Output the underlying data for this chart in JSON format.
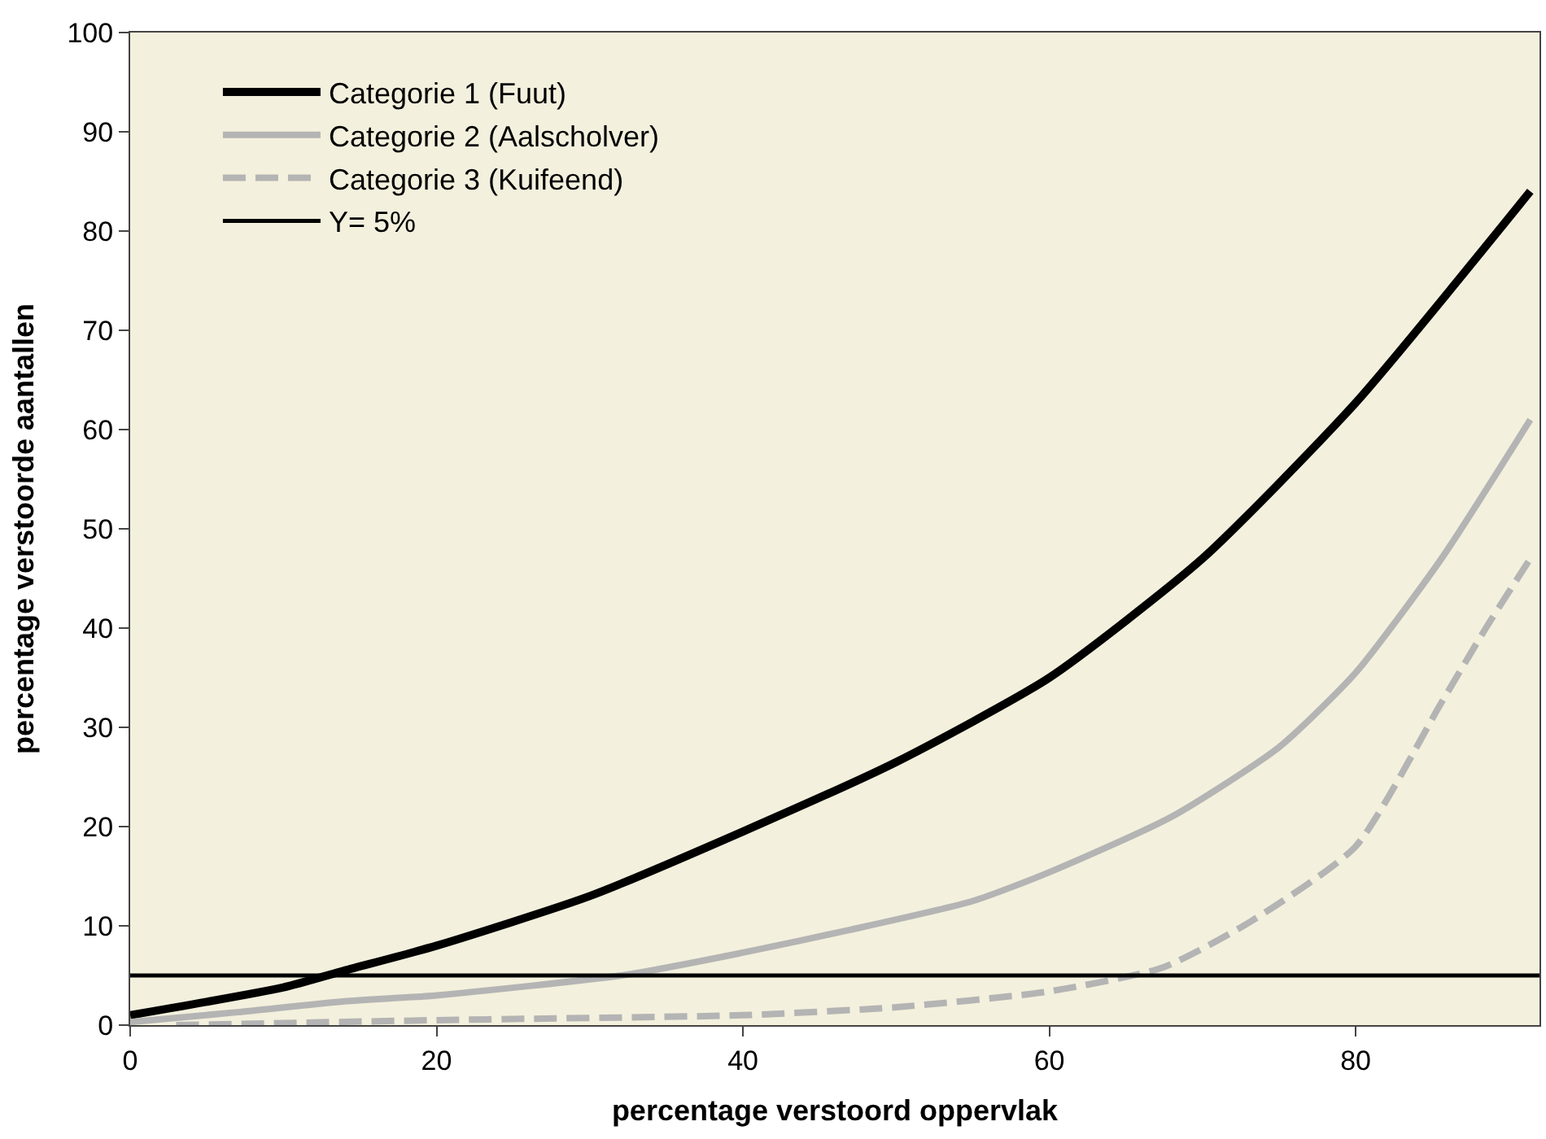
{
  "chart_data": {
    "type": "line",
    "xlabel": "percentage verstoord oppervlak",
    "ylabel": "percentage verstoorde aantallen",
    "xlim": [
      0,
      92
    ],
    "xticks": [
      0,
      20,
      40,
      60,
      80
    ],
    "ylim": [
      0,
      100
    ],
    "yticks": [
      0,
      10,
      20,
      30,
      40,
      50,
      60,
      70,
      80,
      90,
      100
    ],
    "grid": false,
    "legend": "top left",
    "marker": "none",
    "series": [
      {
        "name": "Categorie 1 (Fuut)",
        "color": "#000000",
        "line_style": "solid",
        "x": [
          0,
          10,
          14,
          20,
          30,
          40,
          50,
          60,
          70,
          80,
          91.4
        ],
        "values": [
          1,
          3.8,
          5.5,
          8,
          13,
          19.5,
          26.5,
          35,
          47,
          62.7,
          84
        ]
      },
      {
        "name": "Categorie 2 (Aalscholver)",
        "color": "#b4b4b4",
        "line_style": "solid",
        "x": [
          0,
          7,
          14,
          20,
          32.5,
          40,
          47,
          55,
          60,
          68,
          75,
          80,
          85.6,
          91.4
        ],
        "values": [
          0.3,
          1.3,
          2.4,
          3,
          5.1,
          7.3,
          9.6,
          12.5,
          15.4,
          21,
          28,
          35.5,
          47,
          61
        ]
      },
      {
        "name": "Categorie 3 (Kuifeend)",
        "color": "#b4b4b4",
        "line_style": "dashed",
        "x": [
          3,
          20,
          40,
          50,
          60,
          67.4,
          73,
          80,
          85.6,
          88.5,
          91.4
        ],
        "values": [
          0,
          0.5,
          1,
          1.8,
          3.4,
          5.8,
          10.3,
          18,
          32.5,
          40,
          47
        ]
      }
    ],
    "ref_lines": [
      {
        "axis": "y",
        "value": 5,
        "label": "Y= 5%",
        "color": "#000000",
        "line_style": "solid"
      }
    ]
  }
}
